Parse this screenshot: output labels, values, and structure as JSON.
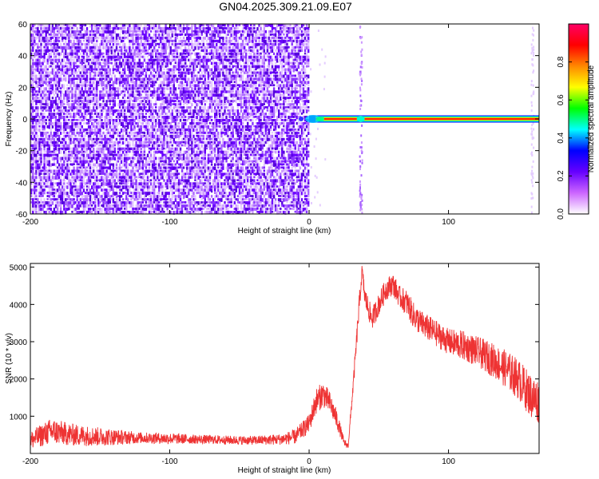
{
  "title": "GN04.2025.309.21.09.E07",
  "chart_data": [
    {
      "type": "heatmap",
      "xlabel": "Height of straight line (km)",
      "ylabel": "Frequency (Hz)",
      "xlim": [
        -200,
        165
      ],
      "ylim": [
        -60,
        60
      ],
      "xticks": [
        -200,
        -100,
        0,
        100
      ],
      "yticks": [
        -60,
        -40,
        -20,
        0,
        20,
        40,
        60
      ],
      "noise_region_x": [
        -200,
        0
      ],
      "signal_line": {
        "x_start": 0,
        "x_end": 165,
        "frequency": 0,
        "amplitude": 1.0
      },
      "vertical_streaks_x": [
        37,
        160
      ],
      "colorbar": {
        "label": "Normalized spectral amplitude",
        "range": [
          0,
          1
        ],
        "ticks": [
          0.0,
          0.2,
          0.4,
          0.6,
          0.8
        ],
        "colors": [
          "#ffffff",
          "#cc66ff",
          "#6600ff",
          "#0000ff",
          "#00ffff",
          "#00ff00",
          "#ffff00",
          "#ff8800",
          "#ff0000",
          "#ff0066"
        ]
      }
    },
    {
      "type": "line",
      "xlabel": "Height of straight line (km)",
      "ylabel": "SNR (10 * v/v)",
      "xlim": [
        -200,
        165
      ],
      "ylim": [
        0,
        5100
      ],
      "xticks": [
        -200,
        -100,
        0,
        100
      ],
      "yticks": [
        1000,
        2000,
        3000,
        4000,
        5000
      ],
      "color": "#ee3333",
      "series": [
        {
          "x": [
            -200,
            -185,
            -170,
            -150,
            -120,
            -100,
            -80,
            -60,
            -40,
            -20,
            -10,
            0,
            5,
            10,
            15,
            20,
            25,
            28,
            32,
            36,
            38,
            40,
            45,
            50,
            55,
            60,
            65,
            70,
            75,
            80,
            90,
            100,
            110,
            120,
            130,
            140,
            150,
            160,
            165
          ],
          "mid": [
            350,
            600,
            500,
            450,
            420,
            400,
            380,
            360,
            350,
            380,
            450,
            800,
            1400,
            1600,
            1350,
            900,
            300,
            200,
            2000,
            4000,
            4900,
            4200,
            3600,
            4000,
            4400,
            4550,
            4200,
            4050,
            3700,
            3500,
            3250,
            3000,
            2900,
            2750,
            2550,
            2300,
            2000,
            1500,
            1400
          ],
          "amp": [
            250,
            350,
            300,
            250,
            150,
            150,
            120,
            120,
            120,
            150,
            200,
            250,
            350,
            350,
            300,
            250,
            100,
            80,
            200,
            300,
            200,
            300,
            300,
            300,
            300,
            300,
            300,
            350,
            350,
            350,
            350,
            350,
            400,
            400,
            450,
            500,
            550,
            600,
            600
          ]
        }
      ]
    }
  ]
}
